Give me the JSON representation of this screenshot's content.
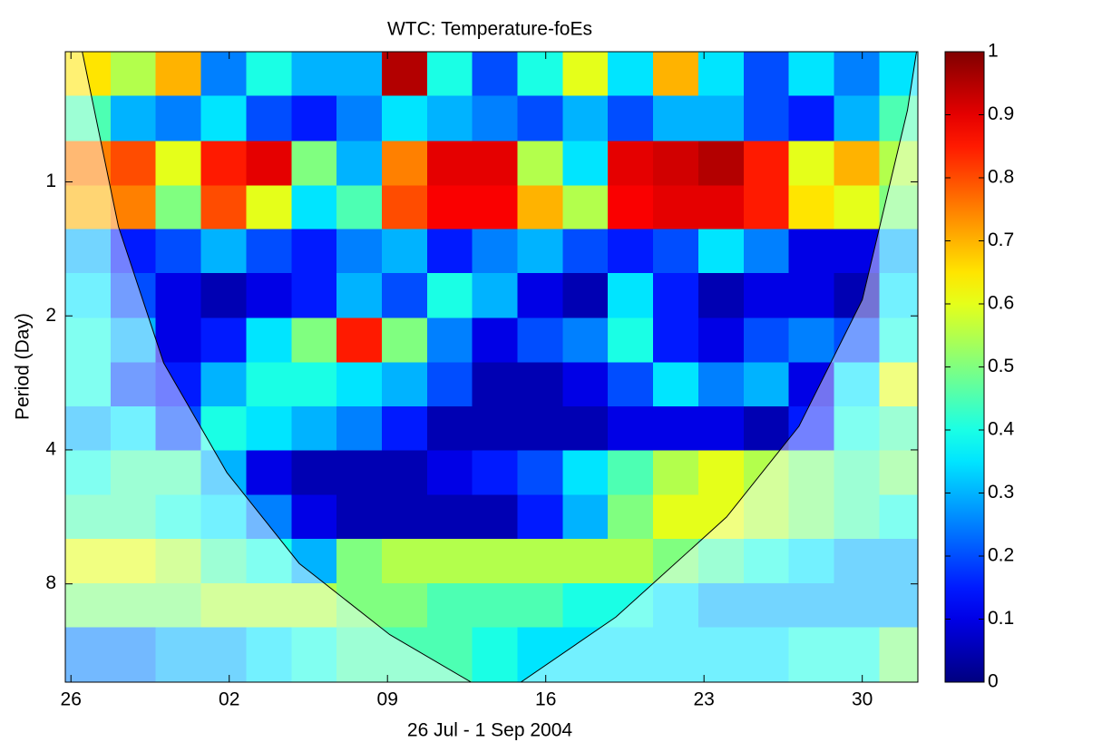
{
  "chart_data": {
    "type": "heatmap",
    "title": "WTC: Temperature-foEs",
    "x_label": "26 Jul - 1 Sep 2004",
    "y_label": "Period (Day)",
    "xlim": [
      -0.25,
      37.46
    ],
    "xticks": [
      {
        "value": 0,
        "label": "26"
      },
      {
        "value": 7,
        "label": "02"
      },
      {
        "value": 14,
        "label": "09"
      },
      {
        "value": 21,
        "label": "16"
      },
      {
        "value": 28,
        "label": "23"
      },
      {
        "value": 35,
        "label": "30"
      }
    ],
    "ylim": [
      0.51,
      13.3
    ],
    "yticks": [
      1,
      2,
      4,
      8
    ],
    "y_scale": "log2",
    "y_reversed": true,
    "colormap": "jet",
    "clim": [
      0,
      1
    ],
    "cticks": [
      0,
      0.1,
      0.2,
      0.3,
      0.4,
      0.5,
      0.6,
      0.7,
      0.8,
      0.9,
      1
    ],
    "x": [
      0.75,
      2.75,
      4.75,
      6.75,
      8.75,
      10.75,
      12.75,
      14.75,
      16.75,
      18.75,
      20.75,
      22.75,
      24.75,
      26.75,
      28.75,
      30.75,
      32.75,
      34.75,
      36.75
    ],
    "periods": [
      0.57,
      0.72,
      0.91,
      1.14,
      1.43,
      1.8,
      2.27,
      2.85,
      3.58,
      4.5,
      5.66,
      7.11,
      8.94,
      11.24
    ],
    "z": [
      [
        0.65,
        0.55,
        0.7,
        0.25,
        0.4,
        0.3,
        0.3,
        0.95,
        0.4,
        0.2,
        0.4,
        0.6,
        0.35,
        0.7,
        0.35,
        0.2,
        0.35,
        0.25,
        0.35
      ],
      [
        0.45,
        0.3,
        0.25,
        0.35,
        0.2,
        0.15,
        0.25,
        0.35,
        0.3,
        0.25,
        0.2,
        0.3,
        0.2,
        0.3,
        0.3,
        0.2,
        0.15,
        0.3,
        0.45
      ],
      [
        0.75,
        0.8,
        0.6,
        0.85,
        0.9,
        0.5,
        0.3,
        0.75,
        0.9,
        0.9,
        0.55,
        0.35,
        0.9,
        0.92,
        0.95,
        0.85,
        0.6,
        0.7,
        0.55
      ],
      [
        0.7,
        0.75,
        0.5,
        0.8,
        0.6,
        0.35,
        0.45,
        0.8,
        0.88,
        0.88,
        0.7,
        0.55,
        0.88,
        0.9,
        0.9,
        0.85,
        0.65,
        0.6,
        0.5
      ],
      [
        0.3,
        0.15,
        0.2,
        0.3,
        0.2,
        0.15,
        0.25,
        0.3,
        0.15,
        0.25,
        0.3,
        0.2,
        0.15,
        0.2,
        0.35,
        0.25,
        0.1,
        0.1,
        0.3
      ],
      [
        0.35,
        0.2,
        0.1,
        0.05,
        0.1,
        0.15,
        0.3,
        0.2,
        0.4,
        0.3,
        0.1,
        0.05,
        0.35,
        0.15,
        0.05,
        0.1,
        0.1,
        0.05,
        0.35
      ],
      [
        0.4,
        0.3,
        0.1,
        0.15,
        0.35,
        0.5,
        0.85,
        0.5,
        0.25,
        0.1,
        0.2,
        0.25,
        0.4,
        0.15,
        0.1,
        0.2,
        0.25,
        0.2,
        0.4
      ],
      [
        0.4,
        0.2,
        0.15,
        0.3,
        0.4,
        0.4,
        0.35,
        0.3,
        0.2,
        0.05,
        0.05,
        0.1,
        0.2,
        0.35,
        0.25,
        0.3,
        0.1,
        0.35,
        0.6
      ],
      [
        0.3,
        0.35,
        0.2,
        0.4,
        0.35,
        0.3,
        0.25,
        0.15,
        0.05,
        0.05,
        0.05,
        0.05,
        0.1,
        0.1,
        0.1,
        0.05,
        0.15,
        0.4,
        0.45
      ],
      [
        0.4,
        0.45,
        0.45,
        0.3,
        0.1,
        0.05,
        0.05,
        0.05,
        0.1,
        0.15,
        0.2,
        0.35,
        0.45,
        0.55,
        0.6,
        0.55,
        0.5,
        0.45,
        0.5
      ],
      [
        0.45,
        0.45,
        0.4,
        0.35,
        0.25,
        0.1,
        0.05,
        0.05,
        0.05,
        0.05,
        0.15,
        0.3,
        0.5,
        0.6,
        0.6,
        0.55,
        0.5,
        0.45,
        0.4
      ],
      [
        0.6,
        0.6,
        0.55,
        0.45,
        0.4,
        0.3,
        0.5,
        0.55,
        0.55,
        0.55,
        0.55,
        0.55,
        0.55,
        0.5,
        0.45,
        0.4,
        0.35,
        0.3,
        0.3
      ],
      [
        0.5,
        0.5,
        0.5,
        0.55,
        0.55,
        0.55,
        0.5,
        0.5,
        0.45,
        0.45,
        0.45,
        0.4,
        0.4,
        0.35,
        0.3,
        0.3,
        0.3,
        0.3,
        0.3
      ],
      [
        0.25,
        0.25,
        0.3,
        0.3,
        0.35,
        0.4,
        0.45,
        0.45,
        0.45,
        0.4,
        0.35,
        0.35,
        0.35,
        0.35,
        0.35,
        0.35,
        0.4,
        0.4,
        0.5
      ]
    ],
    "coi": {
      "x": [
        0.5,
        2.1,
        4.1,
        6.9,
        10.1,
        14.1,
        17.7,
        19.9,
        24.1,
        29,
        32.2,
        35,
        37,
        37.4
      ],
      "period": [
        0.51,
        1.26,
        2.55,
        4.5,
        7.2,
        10.4,
        13.3,
        13.3,
        9.5,
        5.66,
        3.54,
        1.84,
        0.69,
        0.51
      ]
    }
  }
}
